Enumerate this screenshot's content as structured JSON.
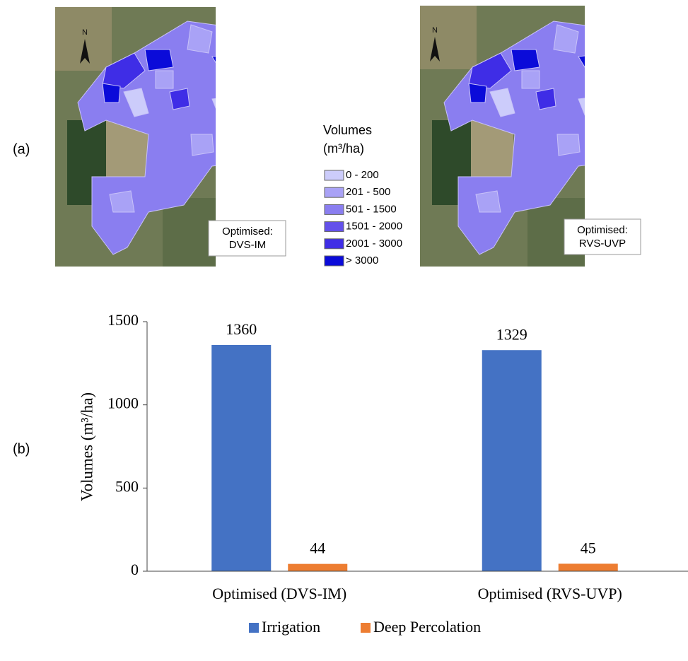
{
  "panels": {
    "a": "(a)",
    "b": "(b)"
  },
  "maps": [
    {
      "label_lines": [
        "Optimised:",
        "DVS-IM"
      ]
    },
    {
      "label_lines": [
        "Optimised:",
        "RVS-UVP"
      ]
    }
  ],
  "map_legend": {
    "title_lines": [
      "Volumes",
      "(m³/ha)"
    ],
    "items": [
      {
        "label": "0 - 200",
        "color": "#ccccfb"
      },
      {
        "label": "201 - 500",
        "color": "#a9a2f6"
      },
      {
        "label": "501 - 1500",
        "color": "#8a7ef0"
      },
      {
        "label": "1501 - 2000",
        "color": "#6350ea"
      },
      {
        "label": "2001 - 3000",
        "color": "#3f2de6"
      },
      {
        "label": "> 3000",
        "color": "#0b0bd9"
      }
    ]
  },
  "chart_data": {
    "type": "bar",
    "categories": [
      "Optimised (DVS-IM)",
      "Optimised (RVS-UVP)"
    ],
    "series": [
      {
        "name": "Irrigation",
        "color": "#4472c4",
        "values": [
          1360,
          1329
        ]
      },
      {
        "name": "Deep Percolation",
        "color": "#ed7d31",
        "values": [
          44,
          45
        ]
      }
    ],
    "y_label": "Volumes (m³/ha)",
    "ylim": [
      0,
      1500
    ],
    "yticks": [
      0,
      500,
      1000,
      1500
    ],
    "legend": "bottom"
  }
}
